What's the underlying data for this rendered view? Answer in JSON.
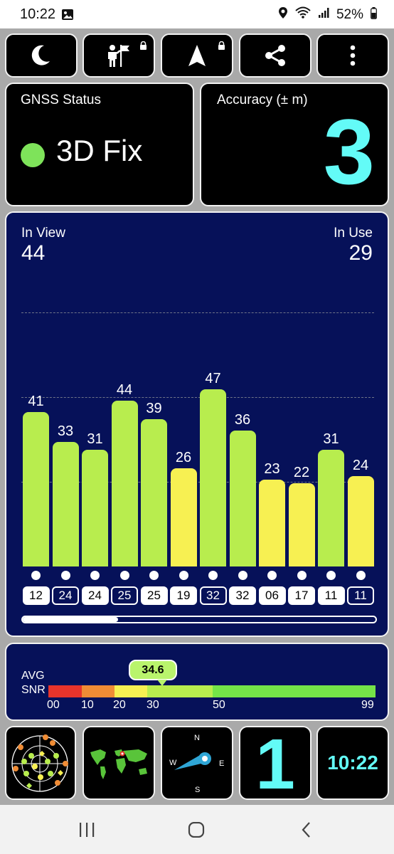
{
  "status_bar": {
    "time": "10:22",
    "battery": "52%"
  },
  "toolbar": {
    "buttons": [
      {
        "name": "night-mode-button",
        "icon": "moon-icon"
      },
      {
        "name": "explorer-button",
        "icon": "explorer-flag-icon"
      },
      {
        "name": "navigation-button",
        "icon": "navigation-arrow-icon"
      },
      {
        "name": "share-button",
        "icon": "share-icon"
      },
      {
        "name": "more-button",
        "icon": "more-vertical-icon"
      }
    ]
  },
  "gnss": {
    "label": "GNSS Status",
    "status": "3D Fix",
    "status_color": "#7ee35a"
  },
  "accuracy": {
    "label": "Accuracy (± m)",
    "value": "3",
    "color": "#63fbf7"
  },
  "satellites": {
    "in_view_label": "In View",
    "in_view": "44",
    "in_use_label": "In Use",
    "in_use": "29",
    "snr_values": [
      41,
      33,
      31,
      44,
      39,
      26,
      47,
      36,
      23,
      22,
      31,
      24
    ],
    "snr_labels": [
      "41",
      "33",
      "31",
      "44",
      "39",
      "26",
      "47",
      "36",
      "23",
      "22",
      "31",
      "24"
    ],
    "ids": [
      "12",
      "24",
      "24",
      "25",
      "25",
      "19",
      "32",
      "32",
      "06",
      "17",
      "11",
      "11"
    ],
    "id_filled": [
      true,
      false,
      true,
      false,
      true,
      true,
      false,
      true,
      true,
      true,
      true,
      false
    ],
    "scroll_fraction": 0.27
  },
  "avg_snr": {
    "label_1": "AVG",
    "label_2": "SNR",
    "value": "34.6",
    "ticks": [
      "00",
      "10",
      "20",
      "30",
      "50",
      "99"
    ]
  },
  "bottom": {
    "satellite_count": "1",
    "clock": "10:22",
    "compass": {
      "n": "N",
      "e": "E",
      "s": "S",
      "w": "W"
    }
  }
}
